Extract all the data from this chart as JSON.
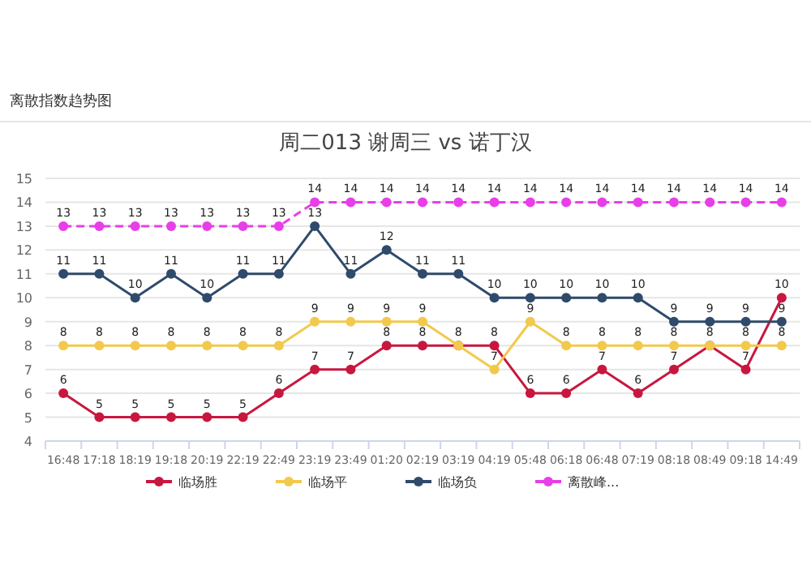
{
  "chart_data": {
    "type": "line",
    "title": "周二013 谢周三 vs 诺丁汉",
    "annotations": [
      "离散指数趋势图"
    ],
    "categories": [
      "16:48",
      "17:18",
      "18:19",
      "19:18",
      "20:19",
      "22:19",
      "22:49",
      "23:19",
      "23:49",
      "01:20",
      "02:19",
      "03:19",
      "04:19",
      "05:48",
      "06:18",
      "06:48",
      "07:19",
      "08:18",
      "08:49",
      "09:18",
      "14:49"
    ],
    "series": [
      {
        "name": "临场胜",
        "color": "#c8173f",
        "values": [
          6,
          5,
          5,
          5,
          5,
          5,
          6,
          7,
          7,
          8,
          8,
          8,
          8,
          6,
          6,
          7,
          6,
          7,
          8,
          7,
          10
        ]
      },
      {
        "name": "临场平",
        "color": "#f2c94c",
        "values": [
          8,
          8,
          8,
          8,
          8,
          8,
          8,
          9,
          9,
          9,
          9,
          8,
          7,
          9,
          8,
          8,
          8,
          8,
          8,
          8,
          8
        ],
        "value_labels": [
          "8",
          "8",
          "8",
          "8",
          "8",
          "8",
          "8",
          "9",
          "9",
          "9",
          "9",
          null,
          "7",
          "9",
          "8",
          "8",
          "8",
          "8",
          null,
          "8",
          "8"
        ]
      },
      {
        "name": "临场负",
        "color": "#2f4a6b",
        "values": [
          11,
          11,
          10,
          11,
          10,
          11,
          11,
          13,
          11,
          12,
          11,
          11,
          10,
          10,
          10,
          10,
          10,
          9,
          9,
          9,
          9
        ]
      },
      {
        "name": "离散峰...",
        "color": "#e83ee8",
        "line_style": "dashed",
        "values": [
          13,
          13,
          13,
          13,
          13,
          13,
          13,
          14,
          14,
          14,
          14,
          14,
          14,
          14,
          14,
          14,
          14,
          14,
          14,
          14,
          14
        ]
      }
    ],
    "ylim": [
      4,
      15
    ],
    "yticks": [
      4,
      5,
      6,
      7,
      8,
      9,
      10,
      11,
      12,
      13,
      14,
      15
    ],
    "grid": "y",
    "legend": "bottom",
    "data_labels": true,
    "marker": "circle"
  }
}
